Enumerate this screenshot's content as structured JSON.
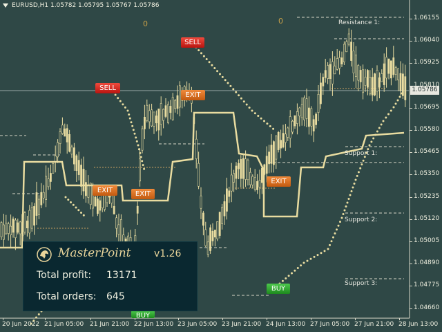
{
  "header": {
    "symbol_text": "EURUSD,H1  1.05782 1.05795 1.05767 1.05786"
  },
  "price_axis": {
    "ticks": [
      "1.06155",
      "1.06040",
      "1.05925",
      "1.05810",
      "1.05695",
      "1.05580",
      "1.05465",
      "1.05350",
      "1.05235",
      "1.05120",
      "1.05005",
      "1.04890",
      "1.04775",
      "1.04660"
    ],
    "current_price": "1.05786"
  },
  "time_axis": {
    "ticks": [
      "20 Jun 2022",
      "21 Jun 05:00",
      "21 Jun 21:00",
      "22 Jun 13:00",
      "23 Jun 05:00",
      "23 Jun 21:00",
      "24 Jun 13:00",
      "27 Jun 05:00",
      "27 Jun 21:00",
      "28 Jun 13:00"
    ]
  },
  "levels": {
    "resistance": "Resistance 1:",
    "support1": "Support 1:",
    "support2": "Support 2:",
    "support3": "Support 3:"
  },
  "counters": {
    "left": "0",
    "right": "0"
  },
  "signals": {
    "sell_1": "SELL",
    "sell_2": "SELL",
    "exit_1": "EXIT",
    "exit_2": "EXIT",
    "exit_3": "EXIT",
    "exit_4": "EXIT",
    "buy_1": "BUY",
    "buy_2": "BUY"
  },
  "panel": {
    "brand": "MasterPoint",
    "version": "v1.26",
    "profit_label": "Total profit:",
    "profit_value": "13171",
    "orders_label": "Total orders:",
    "orders_value": "645"
  },
  "colors": {
    "background": "#2f4846",
    "candles": "#e9dca0",
    "sell": "#d2231f",
    "exit": "#e0701a",
    "buy": "#2fa82f",
    "panel": "#0a2830"
  }
}
